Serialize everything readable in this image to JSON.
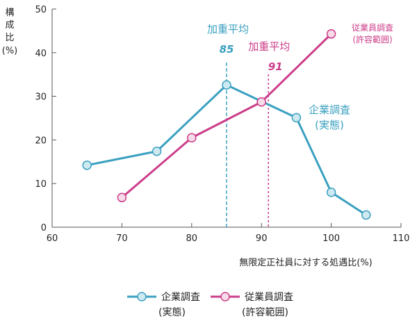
{
  "chart_data": {
    "type": "line",
    "xlabel": "無限定正社員に対する処遇比(%)",
    "ylabel_lines": [
      "構",
      "成",
      "比",
      "(%)"
    ],
    "xlim": [
      60,
      110
    ],
    "ylim": [
      0,
      50
    ],
    "xticks": [
      60,
      70,
      80,
      90,
      100,
      110
    ],
    "yticks": [
      0,
      10,
      20,
      30,
      40,
      50
    ],
    "grid": false,
    "legend_position": "bottom",
    "series": [
      {
        "key": "company",
        "legend_line1": "企業調査",
        "legend_line2": "(実態)",
        "label_line1": "企業調査",
        "label_line2": "(実態)",
        "color": "#3aa0c0",
        "marker_fill": "#cfe9f1",
        "x": [
          65,
          75,
          85,
          95,
          100,
          105
        ],
        "y": [
          14.2,
          17.4,
          32.6,
          25.1,
          8.0,
          2.8
        ]
      },
      {
        "key": "employee",
        "legend_line1": "従業員調査",
        "legend_line2": "(許容範囲)",
        "label_line1": "従業員調査",
        "label_line2": "(許容範囲)",
        "color": "#cc3d8a",
        "marker_fill": "#f6dbe9",
        "x": [
          70,
          80,
          90,
          100
        ],
        "y": [
          6.8,
          20.5,
          28.7,
          44.3
        ]
      }
    ],
    "reference_lines": [
      {
        "key": "avg_company",
        "label": "加重平均",
        "value_label": "85",
        "x": 85,
        "color": "#3aa0c0"
      },
      {
        "key": "avg_employee",
        "label": "加重平均",
        "value_label": "91",
        "x": 91,
        "color": "#cc3d8a"
      }
    ]
  }
}
